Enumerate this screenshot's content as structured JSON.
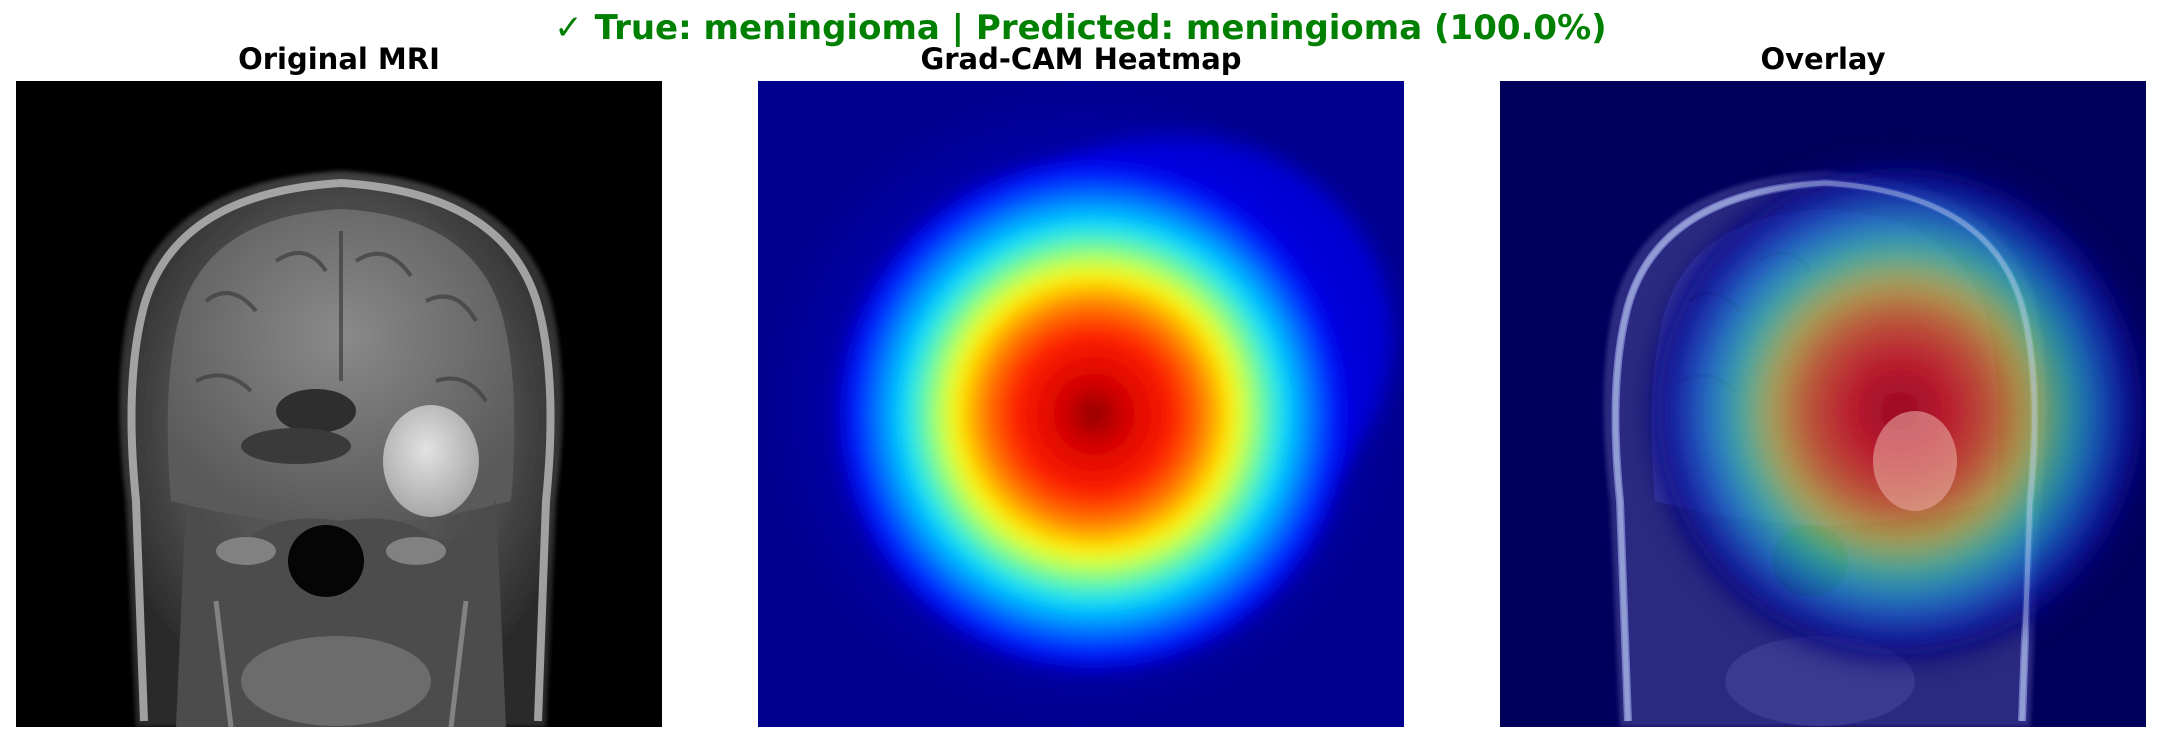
{
  "figure": {
    "suptitle": "✓ True: meningioma | Predicted: meningioma (100.0%)",
    "suptitle_color": "#008000"
  },
  "panels": [
    {
      "title": "Original MRI"
    },
    {
      "title": "Grad-CAM Heatmap"
    },
    {
      "title": "Overlay"
    }
  ]
}
